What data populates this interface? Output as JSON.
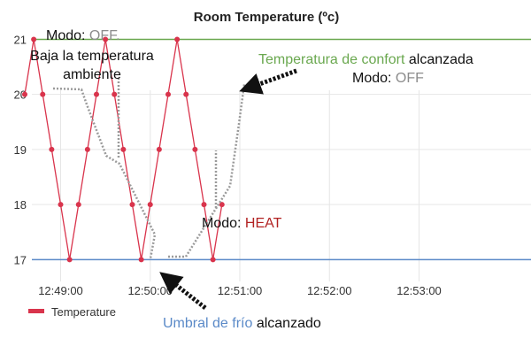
{
  "chart_data": {
    "type": "line",
    "title": "Room Temperature (ºc)",
    "xlabel": "",
    "ylabel": "",
    "ylim": [
      16.7,
      21.2
    ],
    "y_ticks": [
      17,
      18,
      19,
      20,
      21
    ],
    "x_ticks": [
      "12:49:00",
      "12:50:00",
      "12:51:00",
      "12:52:00",
      "12:53:00"
    ],
    "x": [
      "12:49:00",
      "12:49:06",
      "12:49:12",
      "12:49:18",
      "12:49:24",
      "12:49:30",
      "12:49:36",
      "12:49:42",
      "12:49:48",
      "12:49:54",
      "12:50:00",
      "12:50:06",
      "12:50:12",
      "12:50:18",
      "12:50:24",
      "12:50:30",
      "12:50:36",
      "12:50:42",
      "12:50:48",
      "12:50:54",
      "12:51:00",
      "12:51:06",
      "12:51:12"
    ],
    "series": [
      {
        "name": "Temperature",
        "color": "#d9344c",
        "x": [
          "12:48:36",
          "12:48:42",
          "12:48:48",
          "12:48:54",
          "12:49:00",
          "12:49:06",
          "12:49:12",
          "12:49:18",
          "12:49:24",
          "12:49:30",
          "12:49:36",
          "12:49:42",
          "12:49:48",
          "12:49:54",
          "12:50:00",
          "12:50:06",
          "12:50:12",
          "12:50:18",
          "12:50:24",
          "12:50:30",
          "12:50:36",
          "12:50:42",
          "12:50:48"
        ],
        "values": [
          20,
          21,
          20,
          19,
          18,
          17,
          18,
          19,
          20,
          21,
          20,
          19,
          18,
          17,
          18,
          19,
          20,
          21,
          20,
          19,
          18,
          17,
          18
        ]
      }
    ],
    "reference_lines": [
      {
        "value": 21,
        "color": "#6aa84f"
      },
      {
        "value": 17,
        "color": "#5b8ac8"
      }
    ],
    "grid": true,
    "legend": {
      "position": "bottom-left",
      "entries": [
        "Temperature"
      ]
    },
    "annotations": {
      "modo_off_top_a": "Modo: ",
      "modo_off_top_b": "OFF.",
      "baja_line1": "Baja la temperatura",
      "baja_line2": "ambiente",
      "confort_a": "Temperatura de confort",
      "confort_b": " alcanzada",
      "modo_off_right_a": "Modo: ",
      "modo_off_right_b": "OFF",
      "modo_heat_a": "Modo: ",
      "modo_heat_b": "HEAT",
      "umbral_a": "Umbral de frío",
      "umbral_b": " alcanzado"
    }
  }
}
